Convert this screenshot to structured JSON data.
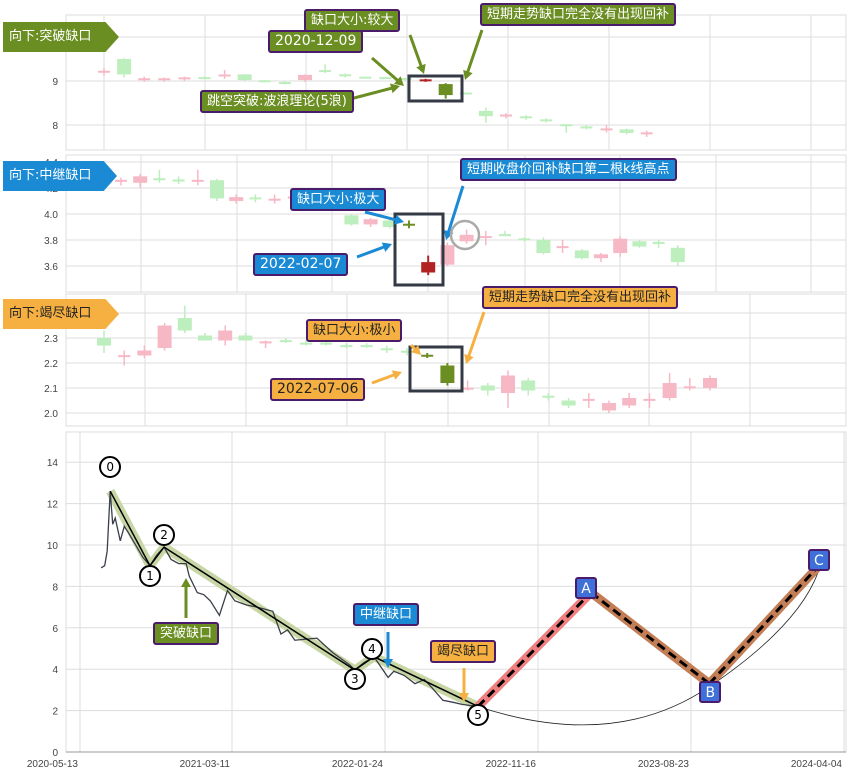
{
  "colors": {
    "up_faded": "#f7b8c6",
    "down_faded": "#bdeebd",
    "up_highlight": "#b22222",
    "down_highlight": "#6b8e23",
    "green": "#6b8e23",
    "blue": "#1a8ad4",
    "orange": "#f5b041",
    "wave_band": "#c8d6a6",
    "ab_band": "#f08080",
    "bc_band": "#c47e56",
    "abc_box": "#3f6fd8"
  },
  "panels": [
    {
      "label": "向下:突破缺口",
      "callouts": {
        "size": "缺口大小:较大",
        "date": "2020-12-09",
        "theory": "跳空突破:波浪理论(5浪)",
        "note": "短期走势缺口完全没有出现回补"
      }
    },
    {
      "label": "向下:中继缺口",
      "callouts": {
        "size": "缺口大小:极大",
        "date": "2022-02-07",
        "note": "短期收盘价回补缺口第二根k线高点"
      }
    },
    {
      "label": "向下:竭尽缺口",
      "callouts": {
        "size": "缺口大小:极小",
        "date": "2022-07-06",
        "note": "短期走势缺口完全没有出现回补"
      }
    }
  ],
  "main_annotations": {
    "breakout": "突破缺口",
    "continuation": "中继缺口",
    "exhaustion": "竭尽缺口"
  },
  "chart_data": [
    {
      "type": "candlestick",
      "yticks": [
        "9",
        "8"
      ],
      "highlight": [
        16,
        17
      ],
      "ohlc": [
        [
          9.2,
          9.3,
          9.12,
          9.22
        ],
        [
          9.5,
          9.52,
          9.08,
          9.15
        ],
        [
          9.03,
          9.1,
          8.98,
          9.05
        ],
        [
          9.03,
          9.08,
          8.98,
          9.05
        ],
        [
          9.05,
          9.1,
          9.0,
          9.07
        ],
        [
          9.07,
          9.1,
          9.05,
          9.06
        ],
        [
          9.1,
          9.25,
          9.05,
          9.15
        ],
        [
          9.15,
          9.16,
          9.0,
          9.02
        ],
        [
          9.0,
          9.02,
          8.97,
          8.99
        ],
        [
          8.96,
          9.0,
          8.92,
          8.95
        ],
        [
          9.02,
          9.15,
          8.98,
          9.14
        ],
        [
          9.25,
          9.38,
          9.18,
          9.2
        ],
        [
          9.16,
          9.17,
          9.08,
          9.1
        ],
        [
          9.08,
          9.1,
          9.06,
          9.07
        ],
        [
          9.07,
          9.09,
          9.05,
          9.06
        ],
        [
          9.05,
          9.07,
          9.0,
          9.04
        ],
        [
          9.01,
          9.05,
          8.98,
          9.02
        ],
        [
          8.93,
          8.95,
          8.6,
          8.68
        ],
        [
          8.72,
          8.74,
          8.7,
          8.71
        ],
        [
          8.32,
          8.4,
          8.05,
          8.2
        ],
        [
          8.21,
          8.27,
          8.15,
          8.22
        ],
        [
          8.2,
          8.22,
          8.12,
          8.15
        ],
        [
          8.13,
          8.15,
          8.06,
          8.08
        ],
        [
          8.0,
          8.02,
          7.82,
          7.99
        ],
        [
          7.97,
          8.0,
          7.9,
          7.92
        ],
        [
          7.88,
          8.0,
          7.83,
          7.92
        ],
        [
          7.9,
          7.92,
          7.78,
          7.82
        ],
        [
          7.8,
          7.87,
          7.73,
          7.82
        ]
      ]
    },
    {
      "type": "candlestick",
      "yticks": [
        "4.4",
        "4.2",
        "4.0",
        "3.8",
        "3.6"
      ],
      "highlight": [
        15,
        16
      ],
      "ohlc": [
        [
          4.25,
          4.28,
          4.22,
          4.26
        ],
        [
          4.24,
          4.31,
          4.2,
          4.29
        ],
        [
          4.27,
          4.34,
          4.24,
          4.265
        ],
        [
          4.26,
          4.29,
          4.23,
          4.255
        ],
        [
          4.25,
          4.34,
          4.22,
          4.26
        ],
        [
          4.26,
          4.27,
          4.1,
          4.12
        ],
        [
          4.1,
          4.15,
          4.08,
          4.13
        ],
        [
          4.13,
          4.15,
          4.09,
          4.11
        ],
        [
          4.1,
          4.15,
          4.08,
          4.12
        ],
        [
          4.125,
          4.16,
          4.1,
          4.13
        ],
        null,
        null,
        [
          3.99,
          4.0,
          3.91,
          3.92
        ],
        [
          3.92,
          3.97,
          3.9,
          3.96
        ],
        [
          3.95,
          3.96,
          3.89,
          3.9
        ],
        [
          3.92,
          3.95,
          3.89,
          3.915
        ],
        [
          3.55,
          3.68,
          3.53,
          3.63
        ],
        [
          3.61,
          3.78,
          3.6,
          3.76
        ],
        [
          3.79,
          3.88,
          3.77,
          3.84
        ],
        [
          3.82,
          3.87,
          3.76,
          3.825
        ],
        [
          3.84,
          3.87,
          3.83,
          3.835
        ],
        [
          3.81,
          3.82,
          3.79,
          3.8
        ],
        [
          3.8,
          3.82,
          3.69,
          3.7
        ],
        [
          3.74,
          3.8,
          3.7,
          3.75
        ],
        [
          3.72,
          3.73,
          3.65,
          3.66
        ],
        [
          3.66,
          3.7,
          3.63,
          3.69
        ],
        [
          3.7,
          3.83,
          3.67,
          3.81
        ],
        [
          3.79,
          3.8,
          3.74,
          3.75
        ],
        [
          3.78,
          3.8,
          3.74,
          3.775
        ],
        [
          3.74,
          3.76,
          3.6,
          3.63
        ]
      ]
    },
    {
      "type": "candlestick",
      "yticks": [
        "2.3",
        "2.2",
        "2.1",
        "2.0"
      ],
      "highlight": [
        16,
        17
      ],
      "ohlc": [
        [
          2.3,
          2.33,
          2.24,
          2.27
        ],
        [
          2.225,
          2.25,
          2.19,
          2.23
        ],
        [
          2.23,
          2.27,
          2.22,
          2.25
        ],
        [
          2.26,
          2.36,
          2.25,
          2.35
        ],
        [
          2.38,
          2.43,
          2.32,
          2.33
        ],
        [
          2.31,
          2.32,
          2.29,
          2.29
        ],
        [
          2.29,
          2.35,
          2.27,
          2.33
        ],
        [
          2.31,
          2.32,
          2.29,
          2.29
        ],
        [
          2.28,
          2.29,
          2.26,
          2.285
        ],
        [
          2.29,
          2.3,
          2.28,
          2.285
        ],
        [
          2.28,
          2.29,
          2.27,
          2.275
        ],
        [
          2.28,
          2.29,
          2.27,
          2.275
        ],
        [
          2.27,
          2.28,
          2.26,
          2.265
        ],
        [
          2.27,
          2.28,
          2.26,
          2.265
        ],
        [
          2.26,
          2.27,
          2.24,
          2.25
        ],
        [
          2.25,
          2.26,
          2.23,
          2.24
        ],
        [
          2.23,
          2.24,
          2.22,
          2.228
        ],
        [
          2.19,
          2.2,
          2.11,
          2.12
        ],
        [
          2.095,
          2.13,
          2.09,
          2.1
        ],
        [
          2.11,
          2.12,
          2.07,
          2.09
        ],
        [
          2.08,
          2.17,
          2.02,
          2.15
        ],
        [
          2.13,
          2.14,
          2.07,
          2.09
        ],
        [
          2.07,
          2.08,
          2.05,
          2.06
        ],
        [
          2.05,
          2.06,
          2.02,
          2.03
        ],
        [
          2.05,
          2.08,
          2.02,
          2.055
        ],
        [
          2.01,
          2.05,
          2.0,
          2.04
        ],
        [
          2.03,
          2.08,
          2.02,
          2.06
        ],
        [
          2.05,
          2.08,
          2.02,
          2.055
        ],
        [
          2.06,
          2.16,
          2.05,
          2.12
        ],
        [
          2.1,
          2.14,
          2.09,
          2.105
        ],
        [
          2.1,
          2.15,
          2.09,
          2.14
        ]
      ]
    },
    {
      "type": "line",
      "ylim": [
        0,
        15
      ],
      "yticks": [
        "0",
        "2",
        "4",
        "6",
        "8",
        "10",
        "12",
        "14"
      ],
      "grid": true,
      "xticks": [
        "2020-05-13",
        "2021-03-11",
        "2022-01-24",
        "2022-11-16",
        "2023-08-23",
        "2024-04-04"
      ],
      "price": [
        [
          "2020-06-24",
          8.9
        ],
        [
          "2020-07-01",
          9.0
        ],
        [
          "2020-07-06",
          9.7
        ],
        [
          "2020-07-12",
          12.6
        ],
        [
          "2020-07-17",
          11.0
        ],
        [
          "2020-07-22",
          11.3
        ],
        [
          "2020-08-01",
          10.2
        ],
        [
          "2020-08-09",
          10.9
        ],
        [
          "2020-08-17",
          10.6
        ],
        [
          "2020-09-03",
          9.9
        ],
        [
          "2020-09-15",
          9.4
        ],
        [
          "2020-09-29",
          9.0
        ],
        [
          "2020-10-12",
          9.5
        ],
        [
          "2020-10-27",
          9.9
        ],
        [
          "2020-11-10",
          9.3
        ],
        [
          "2020-11-25",
          9.1
        ],
        [
          "2020-12-10",
          9.1
        ],
        [
          "2020-12-16",
          8.5
        ],
        [
          "2021-01-01",
          7.7
        ],
        [
          "2021-01-14",
          7.6
        ],
        [
          "2021-01-27",
          7.3
        ],
        [
          "2021-02-14",
          6.6
        ],
        [
          "2021-03-02",
          7.8
        ],
        [
          "2021-03-17",
          7.3
        ],
        [
          "2021-04-10",
          7.1
        ],
        [
          "2021-05-02",
          7.0
        ],
        [
          "2021-06-04",
          6.8
        ],
        [
          "2021-06-21",
          5.7
        ],
        [
          "2021-07-05",
          5.9
        ],
        [
          "2021-07-20",
          5.4
        ],
        [
          "2021-09-04",
          5.5
        ],
        [
          "2021-10-07",
          4.8
        ],
        [
          "2021-11-12",
          4.2
        ],
        [
          "2021-11-22",
          3.96
        ],
        [
          "2021-12-10",
          4.3
        ],
        [
          "2022-01-01",
          4.6
        ],
        [
          "2022-01-30",
          3.6
        ],
        [
          "2022-02-10",
          3.9
        ],
        [
          "2022-03-02",
          3.7
        ],
        [
          "2022-03-23",
          3.3
        ],
        [
          "2022-04-10",
          3.5
        ],
        [
          "2022-04-25",
          3.1
        ],
        [
          "2022-05-16",
          2.5
        ],
        [
          "2022-06-05",
          2.4
        ],
        [
          "2022-06-22",
          2.3
        ],
        [
          "2022-07-23",
          2.2
        ]
      ],
      "waves": [
        {
          "label": "0",
          "date": "2020-07-12",
          "value": 12.6
        },
        {
          "label": "1",
          "date": "2020-09-29",
          "value": 9.0
        },
        {
          "label": "2",
          "date": "2020-10-27",
          "value": 9.9
        },
        {
          "label": "3",
          "date": "2021-11-22",
          "value": 3.96
        },
        {
          "label": "4",
          "date": "2022-01-01",
          "value": 4.6
        },
        {
          "label": "5",
          "date": "2022-07-23",
          "value": 2.2
        }
      ],
      "abc": [
        {
          "label": "A",
          "date": "2023-02-21",
          "value": 7.7
        },
        {
          "label": "B",
          "date": "2023-09-19",
          "value": 3.3
        },
        {
          "label": "C",
          "date": "2024-03-01",
          "value": 9.1
        }
      ]
    }
  ]
}
